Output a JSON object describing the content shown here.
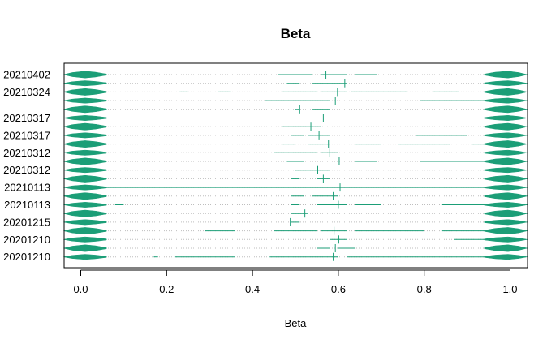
{
  "chart_data": {
    "type": "violin",
    "title": "Beta",
    "xlabel": "Beta",
    "ylabel": "",
    "xlim": [
      -0.04,
      1.04
    ],
    "x_ticks": [
      0.0,
      0.2,
      0.4,
      0.6,
      0.8,
      1.0
    ],
    "x_tick_labels": [
      "0.0",
      "0.2",
      "0.4",
      "0.6",
      "0.8",
      "1.0"
    ],
    "grid": "dotted horizontal row lines",
    "legend": "none",
    "colors": {
      "violin": "#1b9e77",
      "grid": "#bebebe",
      "axis": "#000000"
    },
    "rows": [
      {
        "label": "20210402",
        "median": 0.571,
        "segments": [
          [
            0.46,
            0.54
          ],
          [
            0.56,
            0.62
          ],
          [
            0.64,
            0.69
          ]
        ]
      },
      {
        "label": "",
        "median": 0.615,
        "segments": [
          [
            0.48,
            0.51
          ],
          [
            0.54,
            0.62
          ]
        ]
      },
      {
        "label": "20210324",
        "median": 0.598,
        "segments": [
          [
            0.23,
            0.25
          ],
          [
            0.32,
            0.35
          ],
          [
            0.47,
            0.55
          ],
          [
            0.56,
            0.62
          ],
          [
            0.63,
            0.76
          ],
          [
            0.82,
            0.88
          ],
          [
            0.95,
            1.0
          ]
        ]
      },
      {
        "label": "",
        "median": 0.593,
        "segments": [
          [
            0.43,
            0.58
          ],
          [
            0.79,
            0.96
          ]
        ]
      },
      {
        "label": "",
        "median": 0.51,
        "segments": [
          [
            0.5,
            0.51
          ],
          [
            0.54,
            0.58
          ]
        ]
      },
      {
        "label": "20210317",
        "median": 0.565,
        "segments": [
          [
            0.0,
            1.0
          ]
        ]
      },
      {
        "label": "",
        "median": 0.536,
        "segments": [
          [
            0.47,
            0.56
          ]
        ]
      },
      {
        "label": "20210317",
        "median": 0.555,
        "segments": [
          [
            0.49,
            0.52
          ],
          [
            0.53,
            0.58
          ],
          [
            0.78,
            0.9
          ]
        ]
      },
      {
        "label": "",
        "median": 0.577,
        "segments": [
          [
            0.47,
            0.5
          ],
          [
            0.53,
            0.58
          ],
          [
            0.64,
            0.7
          ],
          [
            0.74,
            0.86
          ],
          [
            0.91,
            1.0
          ]
        ]
      },
      {
        "label": "20210312",
        "median": 0.58,
        "segments": [
          [
            0.45,
            0.55
          ],
          [
            0.56,
            0.6
          ]
        ]
      },
      {
        "label": "",
        "median": 0.602,
        "segments": [
          [
            0.48,
            0.52
          ],
          [
            0.64,
            0.69
          ],
          [
            0.79,
            1.0
          ]
        ]
      },
      {
        "label": "20210312",
        "median": 0.552,
        "segments": [
          [
            0.5,
            0.58
          ]
        ]
      },
      {
        "label": "",
        "median": 0.565,
        "segments": [
          [
            0.49,
            0.51
          ],
          [
            0.55,
            0.58
          ]
        ]
      },
      {
        "label": "20210113",
        "median": 0.604,
        "segments": [
          [
            0.0,
            1.0
          ]
        ]
      },
      {
        "label": "",
        "median": 0.588,
        "segments": [
          [
            0.49,
            0.52
          ],
          [
            0.54,
            0.6
          ]
        ]
      },
      {
        "label": "20210113",
        "median": 0.6,
        "segments": [
          [
            0.08,
            0.1
          ],
          [
            0.49,
            0.51
          ],
          [
            0.55,
            0.62
          ],
          [
            0.64,
            0.7
          ],
          [
            0.84,
            0.98
          ]
        ]
      },
      {
        "label": "",
        "median": 0.522,
        "segments": [
          [
            0.49,
            0.53
          ]
        ]
      },
      {
        "label": "20201215",
        "median": 0.488,
        "segments": [
          [
            0.49,
            0.51
          ]
        ]
      },
      {
        "label": "",
        "median": 0.59,
        "segments": [
          [
            0.29,
            0.36
          ],
          [
            0.45,
            0.55
          ],
          [
            0.56,
            0.62
          ],
          [
            0.64,
            0.8
          ],
          [
            0.84,
            0.96
          ]
        ]
      },
      {
        "label": "20201210",
        "median": 0.601,
        "segments": [
          [
            0.58,
            0.62
          ],
          [
            0.87,
            0.98
          ]
        ]
      },
      {
        "label": "",
        "median": 0.593,
        "segments": [
          [
            0.55,
            0.58
          ],
          [
            0.6,
            0.64
          ]
        ]
      },
      {
        "label": "20201210",
        "median": 0.588,
        "segments": [
          [
            0.17,
            0.18
          ],
          [
            0.22,
            0.36
          ],
          [
            0.44,
            0.6
          ],
          [
            0.62,
            0.96
          ]
        ]
      }
    ]
  }
}
